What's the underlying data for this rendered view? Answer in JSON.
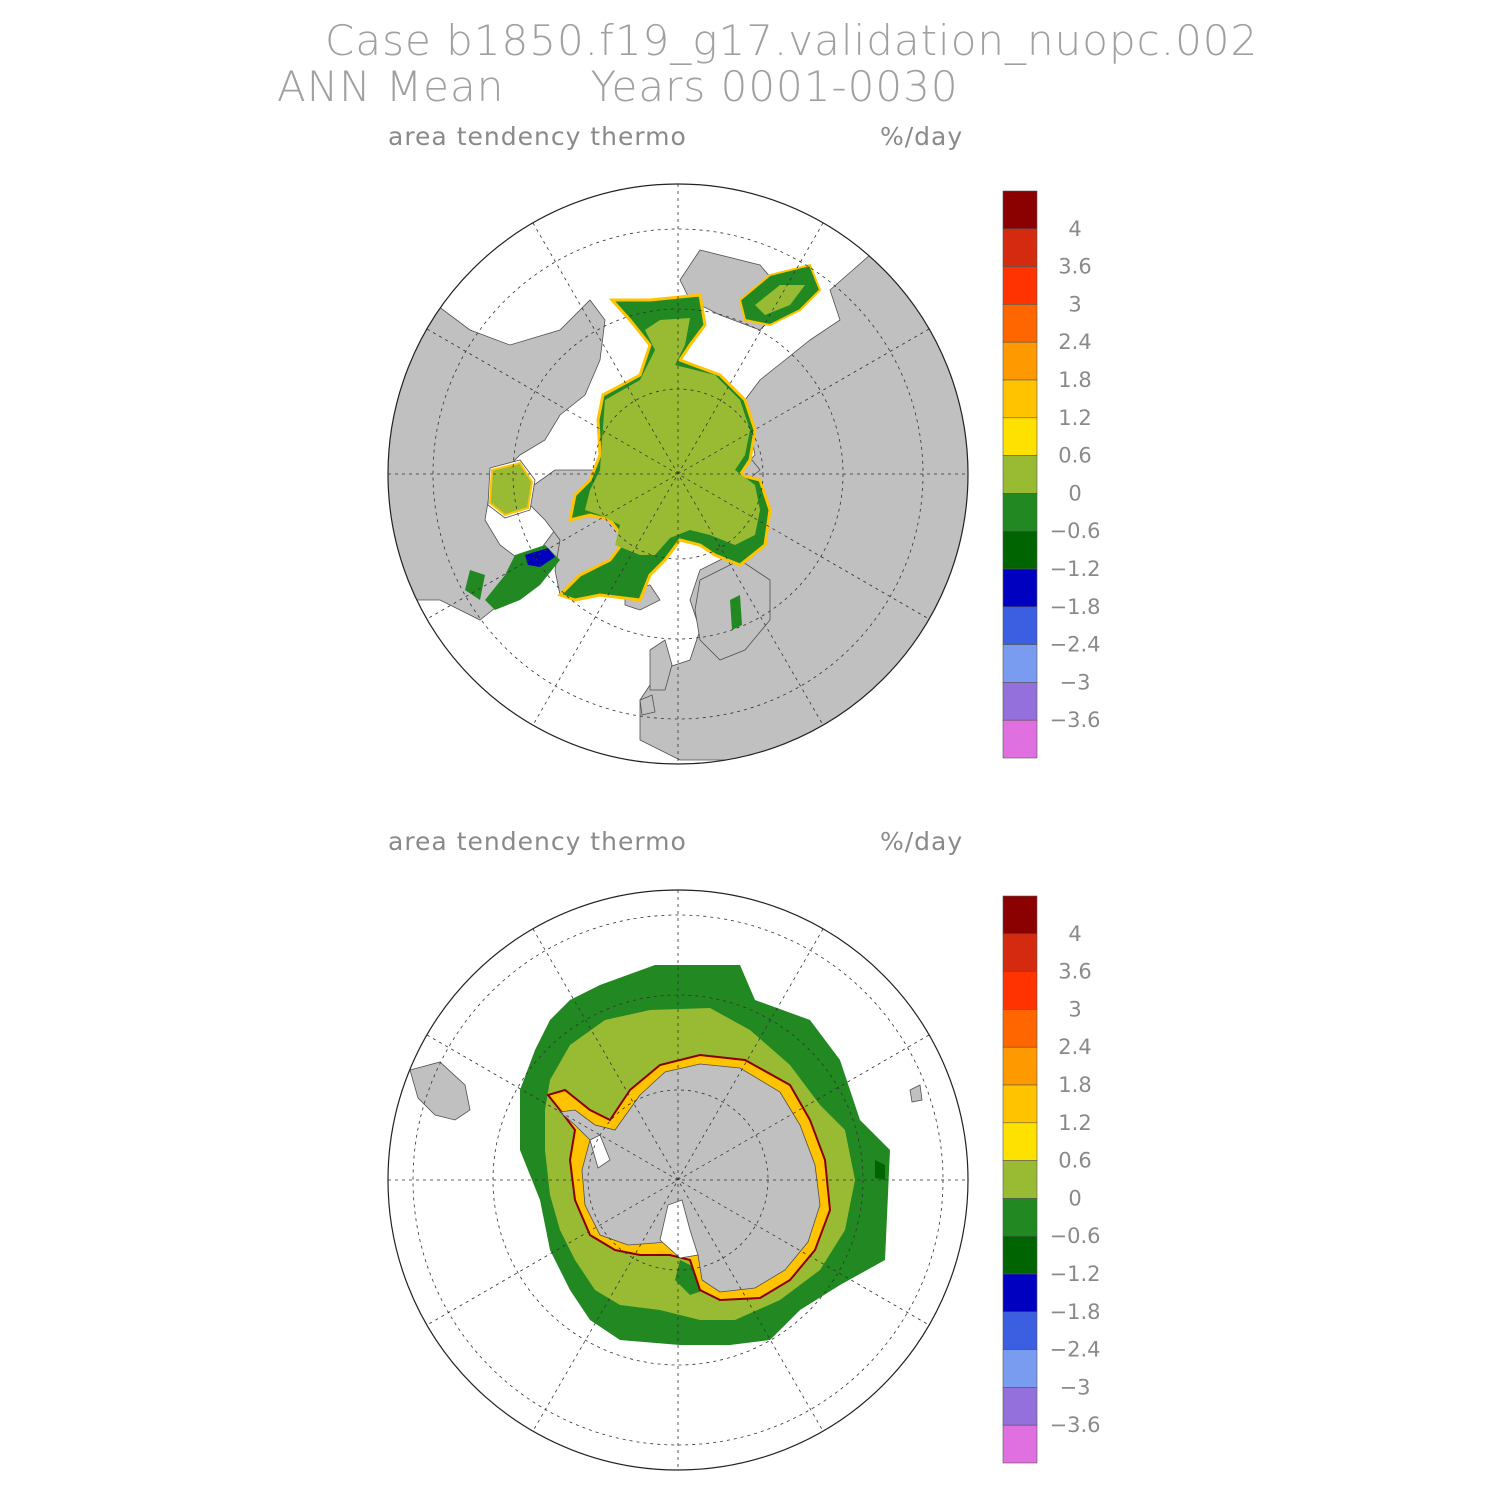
{
  "title": {
    "line1": "Case b1850.f19_g17.validation_nuopc.002",
    "line2": "ANN Mean      Years 0001-0030"
  },
  "panels": [
    {
      "name": "north",
      "variable": "area tendency thermo",
      "units": "%/day"
    },
    {
      "name": "south",
      "variable": "area tendency thermo",
      "units": "%/day"
    }
  ],
  "colorbar": {
    "colors": [
      "#8b0000",
      "#d42a10",
      "#ff3300",
      "#ff6600",
      "#ff9900",
      "#ffc300",
      "#ffe100",
      "#99bb33",
      "#228822",
      "#006400",
      "#0000c0",
      "#3b5fe0",
      "#7a9cf0",
      "#9370db",
      "#e070e0"
    ],
    "labels": [
      "4",
      "3.6",
      "3",
      "2.4",
      "1.8",
      "1.2",
      "0.6",
      "0",
      "−0.6",
      "−1.2",
      "−1.8",
      "−2.4",
      "−3",
      "−3.6"
    ]
  },
  "map_colors": {
    "land": "#c0c0c0",
    "ice_mid": "#99bb33",
    "ice_edge": "#228822",
    "ice_dark": "#006400",
    "edge_melt": "#ffc300",
    "edge_strong": "#cc2200",
    "negative": "#0000c0"
  }
}
